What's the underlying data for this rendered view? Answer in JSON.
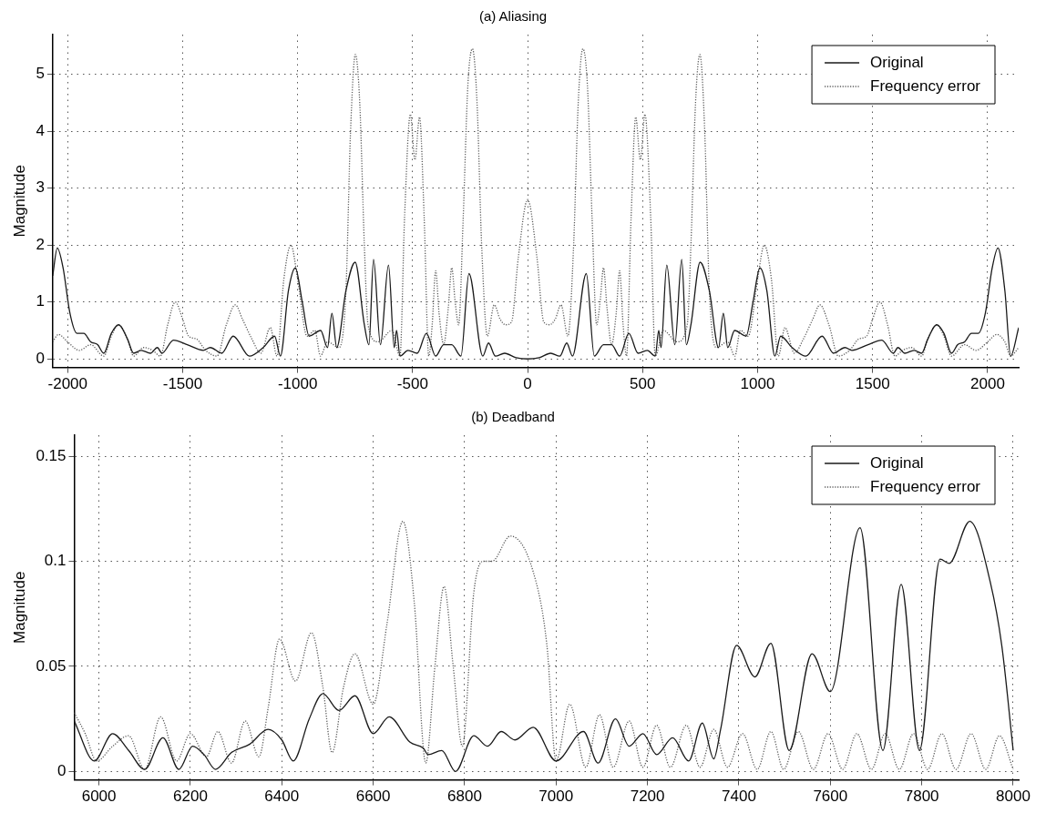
{
  "chart_data": [
    {
      "type": "line",
      "title": "(a) Aliasing",
      "ylabel": "Magnitude",
      "xlim": [
        -2065,
        2135
      ],
      "ylim": [
        -0.15,
        5.7
      ],
      "xticks": [
        -2000,
        -1500,
        -1000,
        -500,
        0,
        500,
        1000,
        1500,
        2000
      ],
      "yticks": [
        0,
        1,
        2,
        3,
        4,
        5
      ],
      "grid": true,
      "legend": "top right",
      "series": [
        {
          "name": "Original",
          "color": "#1a1a1a",
          "line_style": "solid",
          "x": [
            -2065,
            -2045,
            -2020,
            -1990,
            -1960,
            -1930,
            -1900,
            -1870,
            -1843,
            -1810,
            -1778,
            -1740,
            -1713,
            -1680,
            -1640,
            -1610,
            -1590,
            -1540,
            -1480,
            -1410,
            -1380,
            -1330,
            -1280,
            -1210,
            -1150,
            -1100,
            -1075,
            -1040,
            -1010,
            -980,
            -950,
            -900,
            -870,
            -851,
            -830,
            -790,
            -750,
            -710,
            -690,
            -670,
            -640,
            -605,
            -580,
            -570,
            -555,
            -520,
            -480,
            -440,
            -400,
            -365,
            -330,
            -290,
            -255,
            -195,
            -170,
            -140,
            -100,
            -50,
            0,
            50,
            100,
            140,
            170,
            195,
            255,
            290,
            330,
            365,
            400,
            440,
            480,
            520,
            555,
            570,
            580,
            605,
            640,
            670,
            690,
            710,
            750,
            790,
            830,
            851,
            870,
            900,
            950,
            980,
            1010,
            1040,
            1075,
            1100,
            1150,
            1210,
            1280,
            1330,
            1380,
            1410,
            1480,
            1540,
            1590,
            1610,
            1640,
            1680,
            1713,
            1740,
            1778,
            1810,
            1843,
            1870,
            1900,
            1930,
            1960,
            1990,
            2020,
            2045,
            2075,
            2100,
            2135
          ],
          "values": [
            1.46,
            1.95,
            1.6,
            0.8,
            0.45,
            0.45,
            0.3,
            0.25,
            0.1,
            0.45,
            0.6,
            0.35,
            0.1,
            0.15,
            0.1,
            0.2,
            0.1,
            0.33,
            0.25,
            0.15,
            0.2,
            0.1,
            0.4,
            0.05,
            0.2,
            0.4,
            0.05,
            1.2,
            1.6,
            1.0,
            0.4,
            0.5,
            0.2,
            0.8,
            0.2,
            1.2,
            1.7,
            0.6,
            0.25,
            1.75,
            0.25,
            1.65,
            0.2,
            0.5,
            0.05,
            0.15,
            0.1,
            0.45,
            0.05,
            0.25,
            0.25,
            0.05,
            1.5,
            0.05,
            0.28,
            0.05,
            0.1,
            0.02,
            0,
            0.02,
            0.1,
            0.05,
            0.28,
            0.05,
            1.5,
            0.05,
            0.25,
            0.25,
            0.05,
            0.45,
            0.1,
            0.15,
            0.05,
            0.5,
            0.2,
            1.65,
            0.25,
            1.75,
            0.25,
            0.6,
            1.7,
            1.2,
            0.2,
            0.8,
            0.2,
            0.5,
            0.4,
            1.0,
            1.6,
            1.2,
            0.05,
            0.4,
            0.2,
            0.05,
            0.4,
            0.1,
            0.2,
            0.15,
            0.25,
            0.33,
            0.1,
            0.2,
            0.1,
            0.15,
            0.1,
            0.35,
            0.6,
            0.45,
            0.1,
            0.25,
            0.3,
            0.45,
            0.45,
            0.8,
            1.6,
            1.95,
            1.2,
            0.05,
            0.55
          ]
        },
        {
          "name": "Frequency error",
          "color": "#5a5a5a",
          "line_style": "dotted",
          "x": [
            -2065,
            -2040,
            -2000,
            -1950,
            -1900,
            -1843,
            -1810,
            -1778,
            -1740,
            -1713,
            -1670,
            -1630,
            -1597,
            -1565,
            -1532,
            -1500,
            -1474,
            -1440,
            -1400,
            -1351,
            -1310,
            -1271,
            -1240,
            -1199,
            -1160,
            -1119,
            -1090,
            -1060,
            -1029,
            -1000,
            -959,
            -925,
            -901,
            -870,
            -820,
            -790,
            -770,
            -749,
            -730,
            -710,
            -694,
            -650,
            -590,
            -555,
            -535,
            -510,
            -490,
            -470,
            -450,
            -430,
            -415,
            -400,
            -385,
            -365,
            -345,
            -330,
            -315,
            -300,
            -280,
            -260,
            -240,
            -220,
            -200,
            -175,
            -145,
            -120,
            -95,
            -70,
            -40,
            0,
            40,
            70,
            95,
            120,
            145,
            175,
            200,
            220,
            240,
            260,
            280,
            300,
            315,
            330,
            345,
            365,
            385,
            400,
            415,
            430,
            450,
            470,
            490,
            510,
            535,
            555,
            590,
            650,
            694,
            710,
            730,
            749,
            770,
            790,
            820,
            870,
            901,
            925,
            959,
            1000,
            1029,
            1060,
            1090,
            1119,
            1160,
            1199,
            1240,
            1271,
            1310,
            1351,
            1400,
            1440,
            1474,
            1500,
            1532,
            1565,
            1597,
            1630,
            1670,
            1713,
            1740,
            1778,
            1810,
            1843,
            1900,
            1950,
            2000,
            2040,
            2075,
            2100,
            2135
          ],
          "values": [
            0.3,
            0.43,
            0.3,
            0.15,
            0.25,
            0.05,
            0.4,
            0.6,
            0.35,
            0.05,
            0.2,
            0.15,
            0.05,
            0.6,
            1.0,
            0.7,
            0.4,
            0.35,
            0.15,
            0.05,
            0.6,
            0.95,
            0.7,
            0.35,
            0.1,
            0.55,
            0.05,
            1.4,
            2.0,
            1.4,
            0.4,
            0.5,
            0.05,
            0.3,
            0.2,
            1.2,
            4.0,
            5.35,
            4.5,
            2.0,
            0.6,
            0.3,
            0.5,
            0.05,
            2.5,
            4.3,
            3.5,
            4.25,
            2.5,
            0.05,
            0.6,
            1.55,
            0.8,
            0.25,
            0.9,
            1.6,
            1.0,
            0.6,
            2.5,
            4.8,
            5.45,
            4.5,
            2.0,
            0.4,
            0.95,
            0.7,
            0.6,
            0.65,
            1.8,
            2.8,
            1.8,
            0.65,
            0.6,
            0.7,
            0.95,
            0.4,
            2.0,
            4.5,
            5.45,
            4.8,
            2.5,
            0.6,
            1.0,
            1.6,
            0.9,
            0.25,
            0.8,
            1.55,
            0.6,
            0.05,
            2.5,
            4.25,
            3.5,
            4.3,
            2.5,
            0.05,
            0.5,
            0.3,
            0.6,
            2.0,
            4.5,
            5.35,
            4.0,
            1.2,
            0.2,
            0.3,
            0.05,
            0.5,
            0.4,
            1.4,
            2.0,
            1.4,
            0.05,
            0.55,
            0.1,
            0.35,
            0.7,
            0.95,
            0.6,
            0.05,
            0.15,
            0.35,
            0.4,
            0.7,
            1.0,
            0.6,
            0.05,
            0.15,
            0.2,
            0.05,
            0.35,
            0.6,
            0.4,
            0.05,
            0.25,
            0.15,
            0.3,
            0.43,
            0.3,
            0.05,
            0.2
          ]
        }
      ]
    },
    {
      "type": "line",
      "title": "(b) Deadband",
      "ylabel": "Magnitude",
      "xlim": [
        5946,
        8012
      ],
      "ylim": [
        -0.004,
        0.16
      ],
      "xticks": [
        6000,
        6200,
        6400,
        6600,
        6800,
        7000,
        7200,
        7400,
        7600,
        7800,
        8000
      ],
      "yticks": [
        0,
        0.05,
        0.1,
        0.15
      ],
      "grid": true,
      "legend": "top right",
      "series": [
        {
          "name": "Original",
          "color": "#1a1a1a",
          "line_style": "solid",
          "x": [
            5946,
            5990,
            6030,
            6065,
            6100,
            6140,
            6175,
            6205,
            6230,
            6255,
            6290,
            6330,
            6370,
            6400,
            6425,
            6460,
            6490,
            6525,
            6560,
            6600,
            6635,
            6680,
            6710,
            6720,
            6750,
            6780,
            6820,
            6850,
            6880,
            6910,
            6950,
            7000,
            7060,
            7092,
            7130,
            7160,
            7190,
            7220,
            7255,
            7290,
            7320,
            7345,
            7360,
            7395,
            7435,
            7470,
            7510,
            7560,
            7600,
            7665,
            7715,
            7755,
            7795,
            7840,
            7860,
            7905,
            7950,
            7975,
            8000
          ],
          "values": [
            0.024,
            0.005,
            0.018,
            0.01,
            0.001,
            0.016,
            0.001,
            0.012,
            0.008,
            0.001,
            0.009,
            0.013,
            0.02,
            0.015,
            0.005,
            0.025,
            0.037,
            0.029,
            0.036,
            0.018,
            0.026,
            0.014,
            0.011,
            0.008,
            0.01,
            0.0,
            0.017,
            0.012,
            0.019,
            0.015,
            0.021,
            0.005,
            0.019,
            0.004,
            0.025,
            0.012,
            0.018,
            0.008,
            0.016,
            0.005,
            0.023,
            0.006,
            0.02,
            0.06,
            0.045,
            0.061,
            0.01,
            0.056,
            0.038,
            0.116,
            0.01,
            0.089,
            0.01,
            0.101,
            0.099,
            0.119,
            0.09,
            0.06,
            0.01
          ]
        },
        {
          "name": "Frequency error",
          "color": "#5a5a5a",
          "line_style": "dotted",
          "x": [
            5946,
            5970,
            5995,
            6030,
            6065,
            6100,
            6135,
            6170,
            6200,
            6235,
            6260,
            6290,
            6320,
            6350,
            6370,
            6395,
            6430,
            6465,
            6490,
            6510,
            6535,
            6560,
            6600,
            6630,
            6665,
            6690,
            6715,
            6735,
            6755,
            6775,
            6795,
            6820,
            6840,
            6860,
            6900,
            6950,
            6980,
            7000,
            7030,
            7065,
            7095,
            7125,
            7160,
            7190,
            7220,
            7250,
            7285,
            7315,
            7345,
            7375,
            7408,
            7440,
            7470,
            7498,
            7530,
            7563,
            7595,
            7627,
            7658,
            7690,
            7720,
            7751,
            7782,
            7813,
            7844,
            7875,
            7908,
            7940,
            7970,
            8000
          ],
          "values": [
            0.028,
            0.018,
            0.005,
            0.012,
            0.017,
            0.001,
            0.026,
            0.005,
            0.018,
            0.007,
            0.019,
            0.004,
            0.024,
            0.007,
            0.03,
            0.063,
            0.043,
            0.066,
            0.04,
            0.009,
            0.04,
            0.056,
            0.032,
            0.07,
            0.119,
            0.08,
            0.004,
            0.05,
            0.088,
            0.05,
            0.012,
            0.085,
            0.1,
            0.1,
            0.112,
            0.095,
            0.06,
            0.005,
            0.032,
            0.002,
            0.027,
            0.002,
            0.024,
            0.002,
            0.022,
            0.002,
            0.022,
            0.002,
            0.02,
            0.002,
            0.018,
            0.001,
            0.019,
            0.001,
            0.019,
            0.001,
            0.018,
            0.001,
            0.018,
            0.001,
            0.018,
            0.001,
            0.018,
            0.001,
            0.018,
            0.001,
            0.018,
            0.001,
            0.017,
            0.001
          ]
        }
      ]
    }
  ]
}
